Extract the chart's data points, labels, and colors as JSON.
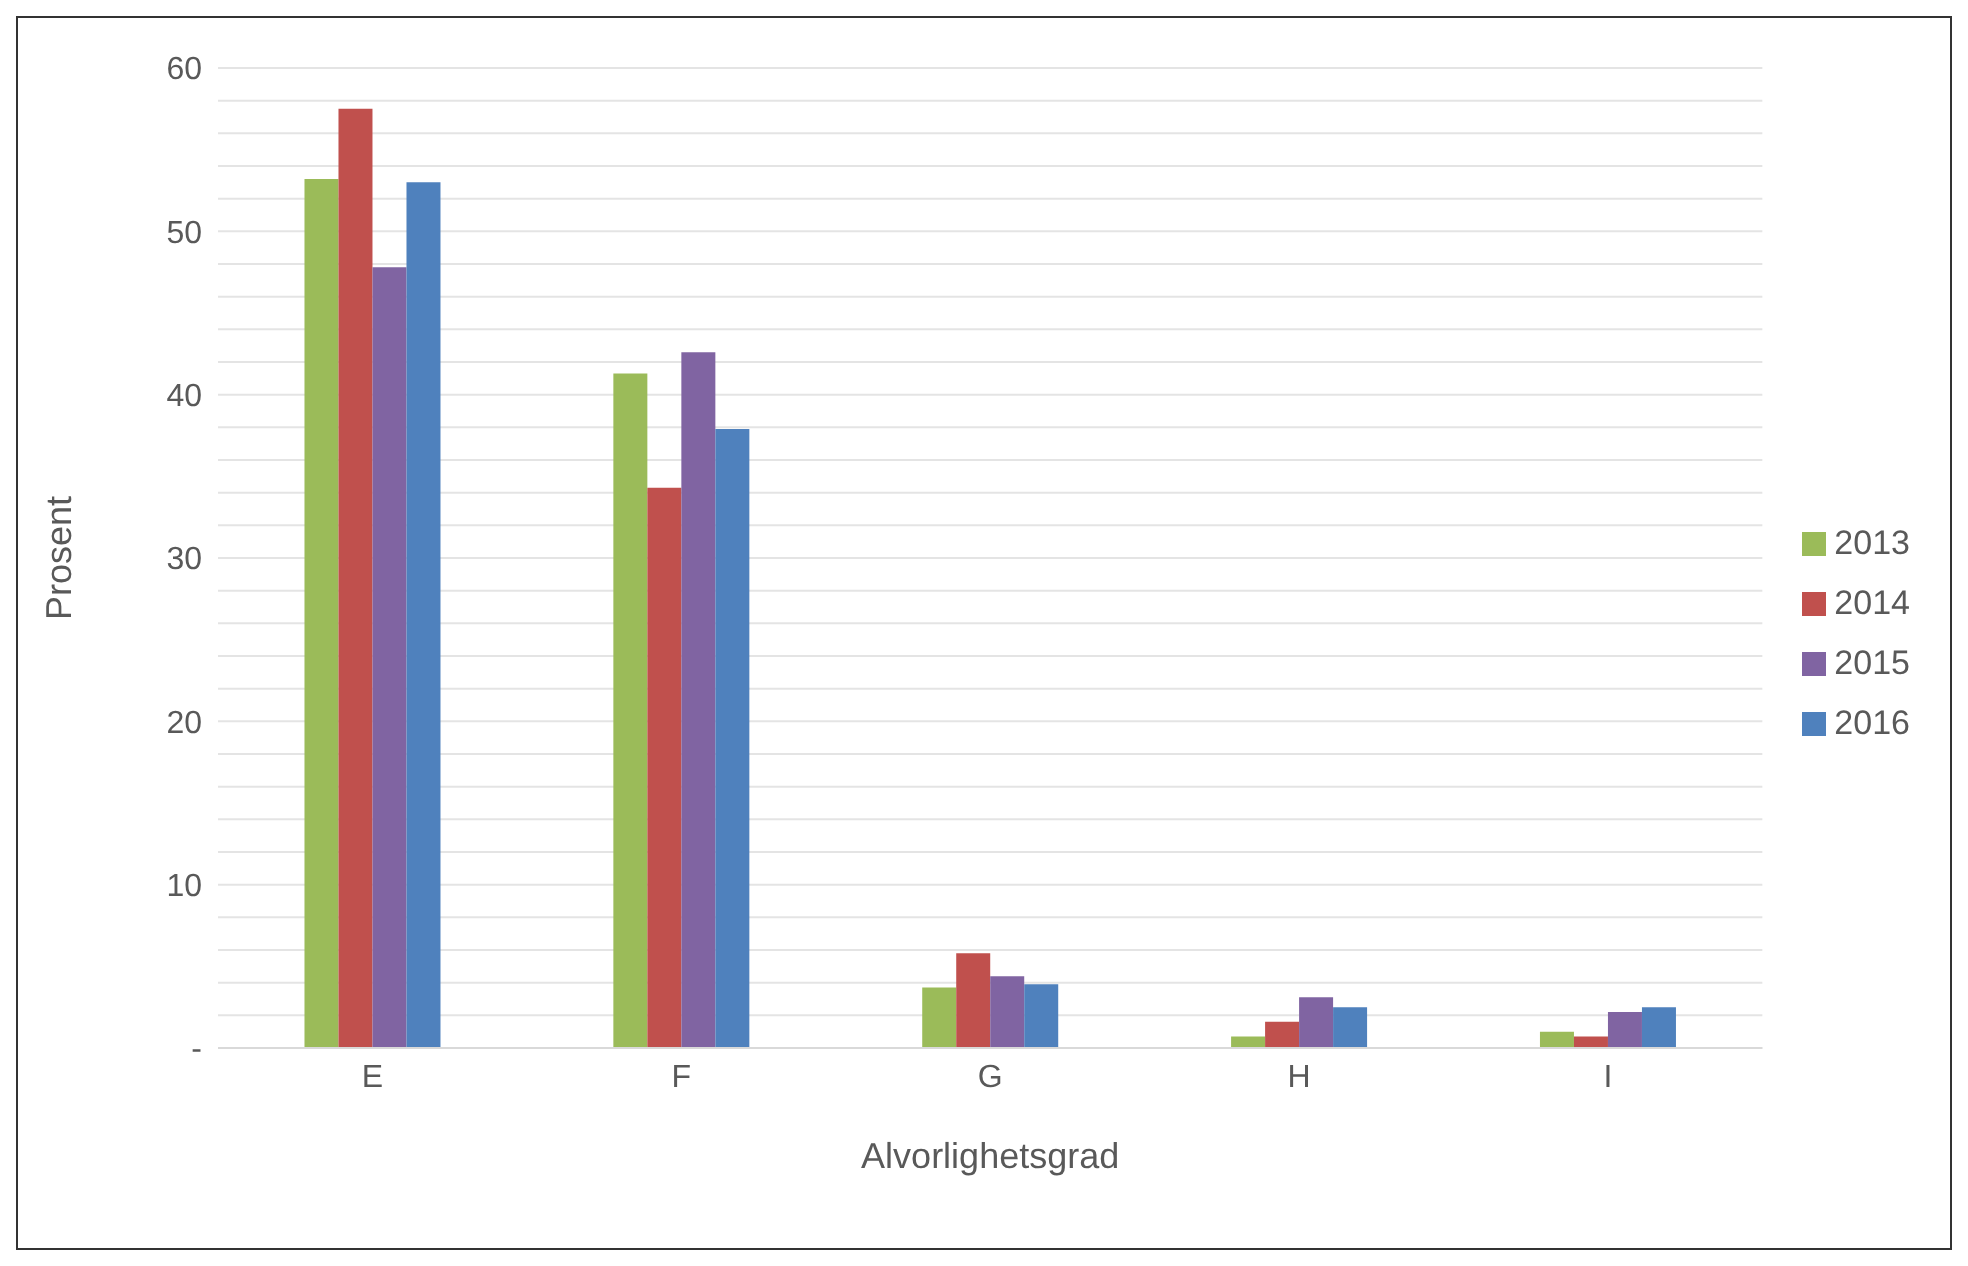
{
  "chart_data": {
    "type": "bar",
    "xlabel": "Alvorlighetsgrad",
    "ylabel": "Prosent",
    "categories": [
      "E",
      "F",
      "G",
      "H",
      "I"
    ],
    "series": [
      {
        "name": "2013",
        "color": "#9bbb59",
        "values": [
          53.2,
          41.3,
          3.7,
          0.7,
          1.0
        ]
      },
      {
        "name": "2014",
        "color": "#c0504d",
        "values": [
          57.5,
          34.3,
          5.8,
          1.6,
          0.7
        ]
      },
      {
        "name": "2015",
        "color": "#8064a2",
        "values": [
          47.8,
          42.6,
          4.4,
          3.1,
          2.2
        ]
      },
      {
        "name": "2016",
        "color": "#4f81bd",
        "values": [
          53.0,
          37.9,
          3.9,
          2.5,
          2.5
        ]
      }
    ],
    "ylim": [
      0,
      60
    ],
    "yticks": [
      {
        "value": 0,
        "label": "-"
      },
      {
        "value": 2,
        "label": null
      },
      {
        "value": 4,
        "label": null
      },
      {
        "value": 6,
        "label": null
      },
      {
        "value": 8,
        "label": null
      },
      10,
      {
        "value": 12,
        "label": null
      },
      {
        "value": 14,
        "label": null
      },
      {
        "value": 16,
        "label": null
      },
      {
        "value": 18,
        "label": null
      },
      20,
      {
        "value": 22,
        "label": null
      },
      {
        "value": 24,
        "label": null
      },
      {
        "value": 26,
        "label": null
      },
      {
        "value": 28,
        "label": null
      },
      30,
      {
        "value": 32,
        "label": null
      },
      {
        "value": 34,
        "label": null
      },
      {
        "value": 36,
        "label": null
      },
      {
        "value": 38,
        "label": null
      },
      40,
      {
        "value": 42,
        "label": null
      },
      {
        "value": 44,
        "label": null
      },
      {
        "value": 46,
        "label": null
      },
      {
        "value": 48,
        "label": null
      },
      50,
      {
        "value": 52,
        "label": null
      },
      {
        "value": 54,
        "label": null
      },
      {
        "value": 56,
        "label": null
      },
      {
        "value": 58,
        "label": null
      },
      60
    ],
    "grid": "y",
    "legend": "right"
  }
}
